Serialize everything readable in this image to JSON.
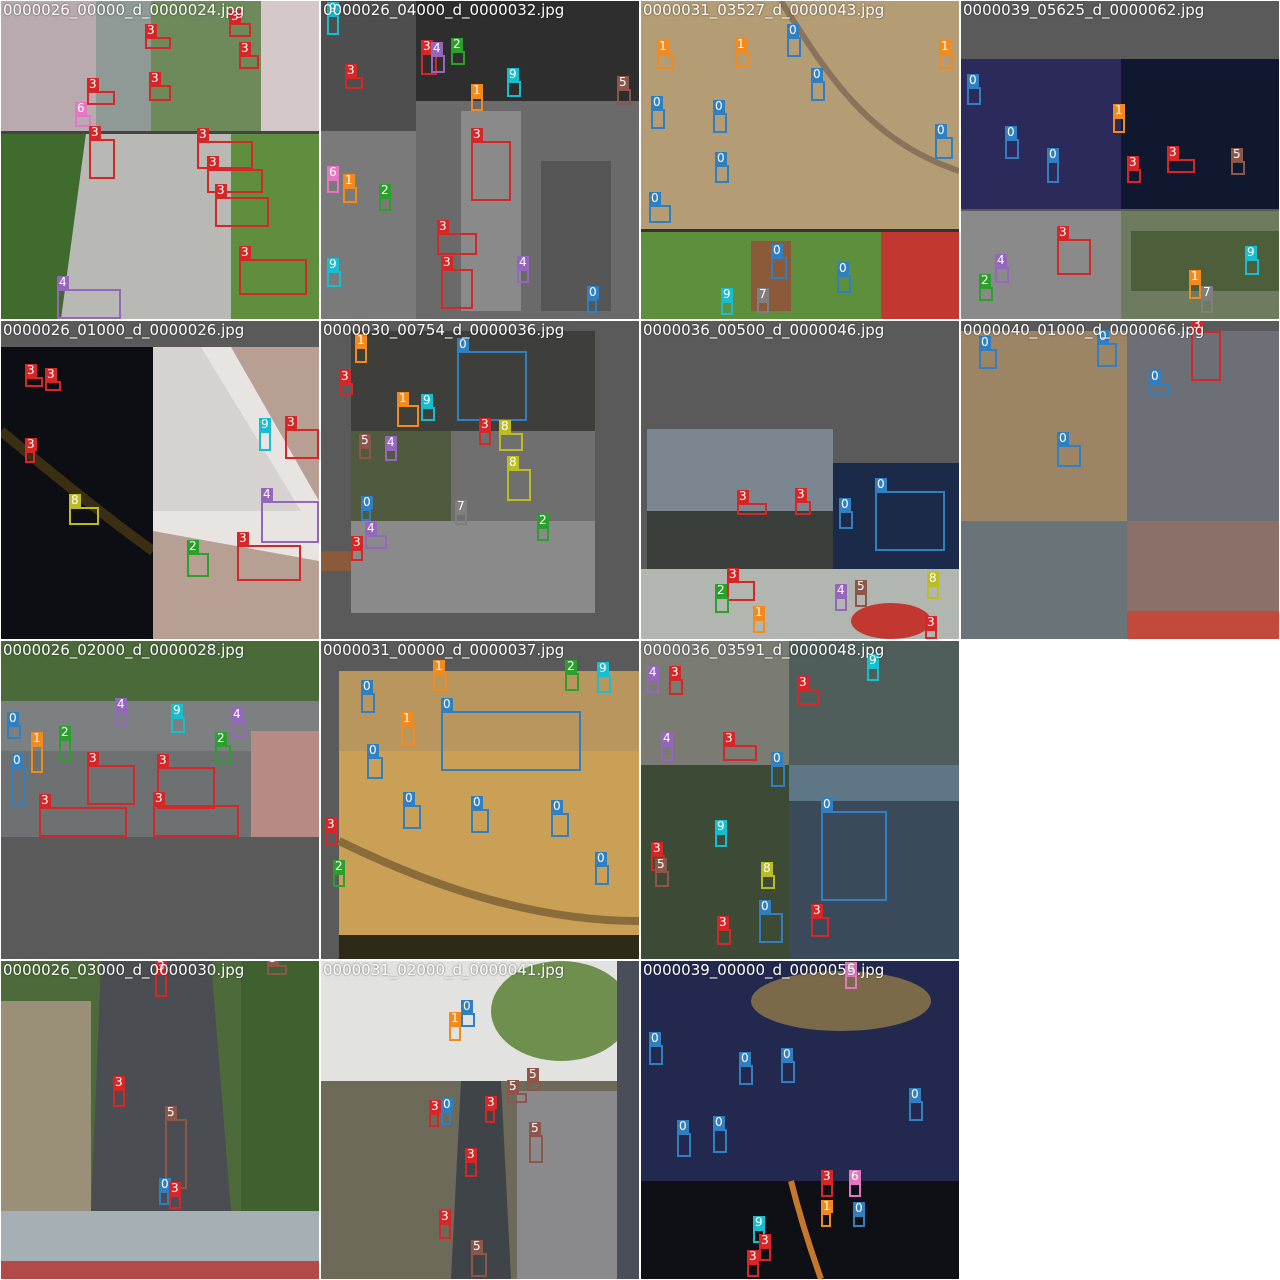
{
  "classes": {
    "0": {
      "color": "#2f7fc1"
    },
    "1": {
      "color": "#f28a1e"
    },
    "2": {
      "color": "#2ca02c"
    },
    "3": {
      "color": "#d62728"
    },
    "4": {
      "color": "#9467bd"
    },
    "5": {
      "color": "#8c564b"
    },
    "6": {
      "color": "#e377c2"
    },
    "7": {
      "color": "#7f7f7f"
    },
    "8": {
      "color": "#bcbd22"
    },
    "9": {
      "color": "#17becf"
    }
  },
  "tiles": [
    {
      "filename": "0000026_00000_d_0000024.jpg",
      "boxes": [
        {
          "cls": "3"
        },
        {
          "cls": "3"
        },
        {
          "cls": "3"
        },
        {
          "cls": "3"
        },
        {
          "cls": "3"
        },
        {
          "cls": "6"
        },
        {
          "cls": "3"
        },
        {
          "cls": "3"
        },
        {
          "cls": "3"
        },
        {
          "cls": "3"
        },
        {
          "cls": "3"
        },
        {
          "cls": "4"
        }
      ]
    },
    {
      "filename": "0000026_04000_d_0000032.jpg",
      "boxes": [
        {
          "cls": "9"
        },
        {
          "cls": "3"
        },
        {
          "cls": "3"
        },
        {
          "cls": "4"
        },
        {
          "cls": "2"
        },
        {
          "cls": "9"
        },
        {
          "cls": "1"
        },
        {
          "cls": "5"
        },
        {
          "cls": "3"
        },
        {
          "cls": "6"
        },
        {
          "cls": "1"
        },
        {
          "cls": "2"
        },
        {
          "cls": "3"
        },
        {
          "cls": "9"
        },
        {
          "cls": "3"
        },
        {
          "cls": "4"
        },
        {
          "cls": "0"
        }
      ]
    },
    {
      "filename": "0000031_03527_d_0000043.jpg",
      "boxes": [
        {
          "cls": "1"
        },
        {
          "cls": "1"
        },
        {
          "cls": "0"
        },
        {
          "cls": "0"
        },
        {
          "cls": "0"
        },
        {
          "cls": "0"
        },
        {
          "cls": "0"
        },
        {
          "cls": "1"
        },
        {
          "cls": "0"
        },
        {
          "cls": "0"
        },
        {
          "cls": "0"
        },
        {
          "cls": "0"
        },
        {
          "cls": "7"
        },
        {
          "cls": "9"
        }
      ]
    },
    {
      "filename": "0000039_05625_d_0000062.jpg",
      "boxes": [
        {
          "cls": "0"
        },
        {
          "cls": "0"
        },
        {
          "cls": "0"
        },
        {
          "cls": "1"
        },
        {
          "cls": "3"
        },
        {
          "cls": "3"
        },
        {
          "cls": "5"
        },
        {
          "cls": "3"
        },
        {
          "cls": "4"
        },
        {
          "cls": "2"
        },
        {
          "cls": "9"
        },
        {
          "cls": "1"
        },
        {
          "cls": "7"
        }
      ]
    },
    {
      "filename": "0000026_01000_d_0000026.jpg",
      "boxes": [
        {
          "cls": "3"
        },
        {
          "cls": "3"
        },
        {
          "cls": "3"
        },
        {
          "cls": "8"
        },
        {
          "cls": "9"
        },
        {
          "cls": "3"
        },
        {
          "cls": "4"
        },
        {
          "cls": "2"
        },
        {
          "cls": "3"
        }
      ]
    },
    {
      "filename": "0000030_00754_d_0000036.jpg",
      "boxes": [
        {
          "cls": "0"
        },
        {
          "cls": "1"
        },
        {
          "cls": "3"
        },
        {
          "cls": "1"
        },
        {
          "cls": "9"
        },
        {
          "cls": "5"
        },
        {
          "cls": "4"
        },
        {
          "cls": "8"
        },
        {
          "cls": "8"
        },
        {
          "cls": "3"
        },
        {
          "cls": "0"
        },
        {
          "cls": "7"
        },
        {
          "cls": "2"
        },
        {
          "cls": "4"
        },
        {
          "cls": "3"
        }
      ]
    },
    {
      "filename": "0000036_00500_d_0000046.jpg",
      "boxes": [
        {
          "cls": "3"
        },
        {
          "cls": "3"
        },
        {
          "cls": "0"
        },
        {
          "cls": "0"
        },
        {
          "cls": "3"
        },
        {
          "cls": "2"
        },
        {
          "cls": "4"
        },
        {
          "cls": "5"
        },
        {
          "cls": "8"
        },
        {
          "cls": "1"
        },
        {
          "cls": "3"
        }
      ]
    },
    {
      "filename": "0000040_01000_d_0000066.jpg",
      "boxes": [
        {
          "cls": "0"
        },
        {
          "cls": "0"
        },
        {
          "cls": "0"
        },
        {
          "cls": "0"
        },
        {
          "cls": "3"
        }
      ]
    },
    {
      "filename": "0000026_02000_d_0000028.jpg",
      "boxes": [
        {
          "cls": "0"
        },
        {
          "cls": "1"
        },
        {
          "cls": "9"
        },
        {
          "cls": "4"
        },
        {
          "cls": "2"
        },
        {
          "cls": "3"
        },
        {
          "cls": "3"
        },
        {
          "cls": "3"
        },
        {
          "cls": "3"
        },
        {
          "cls": "0"
        },
        {
          "cls": "4"
        },
        {
          "cls": "2"
        }
      ]
    },
    {
      "filename": "0000031_00000_d_0000037.jpg",
      "boxes": [
        {
          "cls": "0"
        },
        {
          "cls": "1"
        },
        {
          "cls": "1"
        },
        {
          "cls": "2"
        },
        {
          "cls": "9"
        },
        {
          "cls": "0"
        },
        {
          "cls": "0"
        },
        {
          "cls": "0"
        },
        {
          "cls": "0"
        },
        {
          "cls": "0"
        },
        {
          "cls": "0"
        },
        {
          "cls": "3"
        },
        {
          "cls": "2"
        }
      ]
    },
    {
      "filename": "0000036_03591_d_0000048.jpg",
      "boxes": [
        {
          "cls": "4"
        },
        {
          "cls": "3"
        },
        {
          "cls": "3"
        },
        {
          "cls": "9"
        },
        {
          "cls": "3"
        },
        {
          "cls": "4"
        },
        {
          "cls": "0"
        },
        {
          "cls": "9"
        },
        {
          "cls": "3"
        },
        {
          "cls": "5"
        },
        {
          "cls": "0"
        },
        {
          "cls": "8"
        },
        {
          "cls": "3"
        },
        {
          "cls": "0"
        },
        {
          "cls": "3"
        }
      ]
    },
    {
      "filename": "0000026_03000_d_0000030.jpg",
      "boxes": [
        {
          "cls": "3"
        },
        {
          "cls": "3"
        },
        {
          "cls": "5"
        },
        {
          "cls": "0"
        },
        {
          "cls": "3"
        },
        {
          "cls": "5"
        }
      ]
    },
    {
      "filename": "0000031_02000_d_0000041.jpg",
      "boxes": [
        {
          "cls": "0"
        },
        {
          "cls": "1"
        },
        {
          "cls": "5"
        },
        {
          "cls": "5"
        },
        {
          "cls": "3"
        },
        {
          "cls": "0"
        },
        {
          "cls": "3"
        },
        {
          "cls": "3"
        },
        {
          "cls": "3"
        },
        {
          "cls": "5"
        },
        {
          "cls": "5"
        }
      ]
    },
    {
      "filename": "0000039_00000_d_0000055.jpg",
      "boxes": [
        {
          "cls": "6"
        },
        {
          "cls": "0"
        },
        {
          "cls": "0"
        },
        {
          "cls": "0"
        },
        {
          "cls": "0"
        },
        {
          "cls": "0"
        },
        {
          "cls": "0"
        },
        {
          "cls": "3"
        },
        {
          "cls": "6"
        },
        {
          "cls": "9"
        },
        {
          "cls": "3"
        },
        {
          "cls": "1"
        },
        {
          "cls": "0"
        },
        {
          "cls": "3"
        }
      ]
    }
  ]
}
